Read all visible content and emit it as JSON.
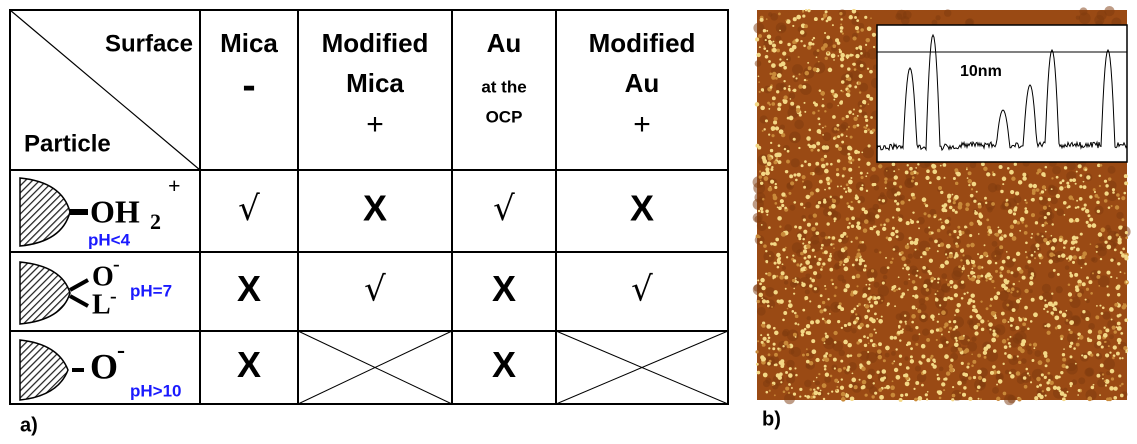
{
  "table": {
    "corner": {
      "top": "Surface",
      "bottom": "Particle"
    },
    "columns": [
      [
        "Mica",
        "-"
      ],
      [
        "Modified",
        "Mica",
        "+"
      ],
      [
        "Au",
        "at the",
        "OCP"
      ],
      [
        "Modified",
        "Au",
        "+"
      ]
    ],
    "rows": [
      {
        "particle": [
          "OH",
          "2",
          "+",
          "pH<4"
        ],
        "cells": [
          "√",
          "X",
          "√",
          "X"
        ]
      },
      {
        "particle": [
          "O",
          "-",
          "L",
          "-",
          "pH=7"
        ],
        "cells": [
          "X",
          "√",
          "X",
          "√"
        ]
      },
      {
        "particle": [
          "O",
          "-",
          "pH>10"
        ],
        "cells": [
          "X",
          null,
          "X",
          null
        ]
      }
    ]
  },
  "panel_a": "a)",
  "panel_b": "b)",
  "image": {
    "scale_label": "10nm"
  }
}
